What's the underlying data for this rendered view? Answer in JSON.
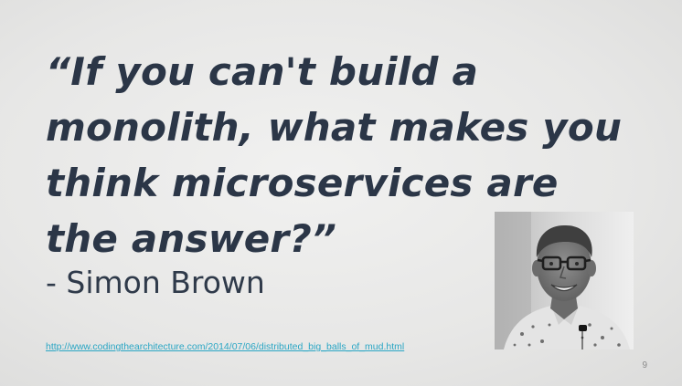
{
  "slide": {
    "quote_lines": [
      "“If you can't build a",
      "monolith, what makes you",
      "think microservices are",
      "the answer?”"
    ],
    "author": "- Simon Brown",
    "source_url": "http://www.codingthearchitecture.com/2014/07/06/distributed_big_balls_of_mud.html",
    "page_number": "9"
  },
  "colors": {
    "quote_text": "#2b3647",
    "link": "#2aa6c4",
    "background": "#e9e9e8"
  }
}
